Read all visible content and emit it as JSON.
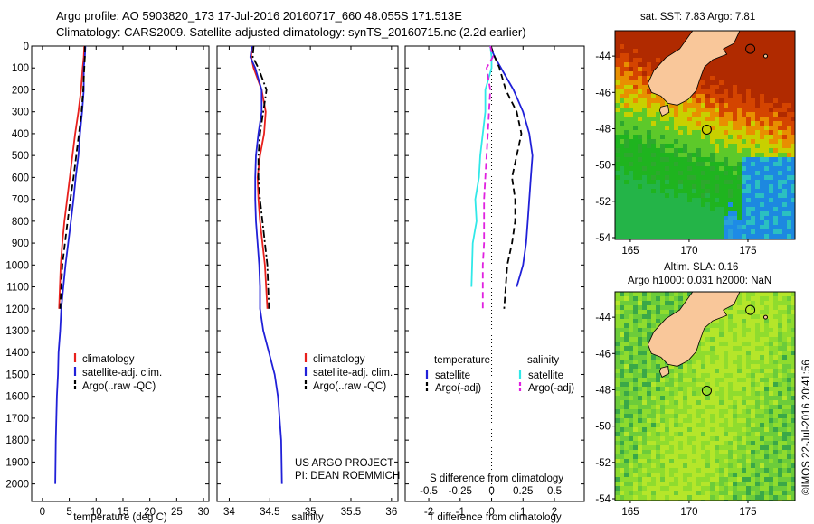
{
  "header": {
    "line1": "Argo profile: AO 5903820_173 17-Jul-2016 20160717_660 48.055S 171.513E",
    "line2": "Climatology: CARS2009. Satellite-adjusted climatology: synTS_20160715.nc (2.2d earlier)"
  },
  "stamp": "©IMOS 22-Jul-2016 20:41:56",
  "colors": {
    "climatology": "#e8201c",
    "satellite": "#2020d8",
    "argo": "#000000",
    "cyan": "#30e8e8",
    "magenta": "#e020e0",
    "land": "#f9c79a"
  },
  "chart_data": [
    {
      "type": "line",
      "id": "temperature",
      "xlabel": "temperature (deg C)",
      "xticks": [
        "0",
        "5",
        "10",
        "15",
        "20",
        "25",
        "30"
      ],
      "xlim": [
        -2,
        31
      ],
      "ylim": [
        0,
        2080
      ],
      "ylabels": [
        "0",
        "100",
        "200",
        "300",
        "400",
        "500",
        "600",
        "700",
        "800",
        "900",
        "1000",
        "1100",
        "1200",
        "1300",
        "1400",
        "1500",
        "1600",
        "1700",
        "1800",
        "1900",
        "2000"
      ],
      "legend": [
        "climatology",
        "satellite-adj. clim.",
        "Argo(..raw -QC)"
      ],
      "series": [
        {
          "name": "climatology",
          "style": "solid",
          "color": "climatology",
          "x": [
            7.8,
            7.7,
            7.5,
            7.2,
            6.7,
            6.1,
            5.6,
            5.1,
            4.6,
            4.1,
            3.7,
            3.4,
            3.1
          ],
          "y": [
            0,
            50,
            100,
            200,
            300,
            400,
            500,
            600,
            700,
            800,
            900,
            1000,
            1200
          ]
        },
        {
          "name": "satellite-adj. clim.",
          "style": "solid",
          "color": "satellite",
          "x": [
            8.0,
            7.9,
            7.7,
            7.7,
            7.4,
            7.0,
            6.7,
            6.2,
            5.8,
            5.3,
            4.8,
            4.3,
            3.9,
            3.5,
            3.3,
            3.0,
            2.9,
            2.7,
            2.6,
            2.5,
            2.4
          ],
          "y": [
            0,
            50,
            100,
            200,
            300,
            400,
            500,
            600,
            700,
            800,
            900,
            1000,
            1100,
            1200,
            1300,
            1400,
            1500,
            1600,
            1700,
            1800,
            2000
          ]
        },
        {
          "name": "Argo(..raw -QC)",
          "style": "dash",
          "color": "argo",
          "x": [
            7.9,
            7.9,
            7.8,
            7.6,
            7.3,
            6.8,
            6.3,
            5.8,
            5.2,
            4.7,
            4.2,
            3.7,
            3.3
          ],
          "y": [
            0,
            50,
            100,
            200,
            300,
            400,
            500,
            600,
            700,
            800,
            900,
            1000,
            1200
          ]
        }
      ]
    },
    {
      "type": "line",
      "id": "salinity",
      "xlabel": "salinity",
      "xticks": [
        "34",
        "34.5",
        "35",
        "35.5",
        "36"
      ],
      "xlim": [
        33.85,
        36.08
      ],
      "ylim": [
        0,
        2080
      ],
      "legend": [
        "climatology",
        "satellite-adj. clim.",
        "Argo(..raw -QC)"
      ],
      "series": [
        {
          "name": "climatology",
          "style": "solid",
          "color": "climatology",
          "x": [
            34.28,
            34.27,
            34.3,
            34.4,
            34.45,
            34.43,
            34.38,
            34.35,
            34.36,
            34.38,
            34.41,
            34.44,
            34.47
          ],
          "y": [
            0,
            50,
            100,
            200,
            300,
            400,
            500,
            600,
            700,
            800,
            900,
            1000,
            1200
          ]
        },
        {
          "name": "satellite-adj. clim.",
          "style": "solid",
          "color": "satellite",
          "x": [
            34.28,
            34.26,
            34.32,
            34.4,
            34.4,
            34.36,
            34.33,
            34.32,
            34.32,
            34.33,
            34.35,
            34.37,
            34.38,
            34.38,
            34.42,
            34.49,
            34.56,
            34.6,
            34.62,
            34.64,
            34.65
          ],
          "y": [
            0,
            50,
            100,
            200,
            300,
            400,
            500,
            600,
            700,
            800,
            900,
            1000,
            1100,
            1200,
            1300,
            1400,
            1500,
            1600,
            1700,
            1800,
            2000
          ]
        },
        {
          "name": "Argo(..raw -QC)",
          "style": "dashdot",
          "color": "argo",
          "x": [
            34.3,
            34.29,
            34.36,
            34.46,
            34.42,
            34.38,
            34.36,
            34.36,
            34.38,
            34.41,
            34.44,
            34.47,
            34.49
          ],
          "y": [
            0,
            50,
            100,
            200,
            300,
            400,
            500,
            600,
            700,
            800,
            900,
            1000,
            1200
          ]
        }
      ],
      "annotation": [
        "US ARGO PROJECT",
        "PI: DEAN ROEMMICH"
      ]
    },
    {
      "type": "line",
      "id": "difference",
      "xlabel": "T difference from climatology",
      "xticks": [
        "-2",
        "-1",
        "0",
        "1",
        "2"
      ],
      "xlim": [
        -2.75,
        2.95
      ],
      "sxlabel": "S difference from climatology",
      "sxticks": [
        "-0.5",
        "-0.25",
        "0",
        "0.25",
        "0.5"
      ],
      "ylim": [
        0,
        2080
      ],
      "legend_headers": [
        "temperature",
        "salinity"
      ],
      "legend": [
        "satellite",
        "Argo(-adj)",
        "satellite",
        "Argo(-adj)"
      ],
      "series": [
        {
          "name": "temperature satellite",
          "style": "solid",
          "color": "satellite",
          "x": [
            -0.05,
            0.1,
            0.3,
            0.7,
            1.0,
            1.2,
            1.3,
            1.25,
            1.2,
            1.15,
            1.1,
            1.0,
            0.8
          ],
          "y": [
            0,
            50,
            100,
            200,
            300,
            400,
            500,
            600,
            700,
            800,
            900,
            1000,
            1100
          ]
        },
        {
          "name": "temperature Argo(-adj)",
          "style": "dash",
          "color": "argo",
          "x": [
            -0.02,
            0.1,
            0.25,
            0.45,
            0.8,
            0.95,
            0.8,
            0.65,
            0.75,
            0.75,
            0.65,
            0.5,
            0.4
          ],
          "y": [
            0,
            50,
            100,
            200,
            300,
            400,
            500,
            600,
            700,
            800,
            900,
            1000,
            1200
          ]
        },
        {
          "name": "salinity satellite",
          "style": "solid",
          "color": "cyan",
          "x": [
            -0.01,
            0.0,
            0.0,
            -0.05,
            -0.05,
            -0.07,
            -0.09,
            -0.1,
            -0.13,
            -0.12,
            -0.15,
            -0.16
          ],
          "y": [
            0,
            50,
            100,
            200,
            300,
            400,
            500,
            600,
            700,
            800,
            900,
            1100
          ]
        },
        {
          "name": "salinity Argo(-adj)",
          "style": "dash",
          "color": "magenta",
          "x": [
            -0.01,
            0.01,
            -0.04,
            -0.01,
            -0.02,
            -0.03,
            -0.04,
            -0.05,
            -0.06,
            -0.06,
            -0.06,
            -0.07,
            -0.07
          ],
          "y": [
            0,
            50,
            100,
            200,
            300,
            400,
            500,
            600,
            700,
            800,
            900,
            1000,
            1200
          ]
        }
      ]
    },
    {
      "type": "heatmap",
      "id": "sst-map",
      "title": "sat. SST: 7.83 Argo: 7.81",
      "xticks": [
        "165",
        "170",
        "175"
      ],
      "yticks": [
        "-44",
        "-46",
        "-48",
        "-50",
        "-52",
        "-54"
      ],
      "xlim": [
        163.7,
        179.0
      ],
      "ylim": [
        -54.1,
        -42.6
      ]
    },
    {
      "type": "heatmap",
      "id": "sla-map",
      "title_line1": "Altim. SLA: 0.16",
      "title_line2": "Argo h1000: 0.031 h2000: NaN",
      "xticks": [
        "165",
        "170",
        "175"
      ],
      "yticks": [
        "-44",
        "-46",
        "-48",
        "-50",
        "-52",
        "-54"
      ],
      "xlim": [
        163.7,
        179.0
      ],
      "ylim": [
        -54.1,
        -42.6
      ]
    }
  ]
}
